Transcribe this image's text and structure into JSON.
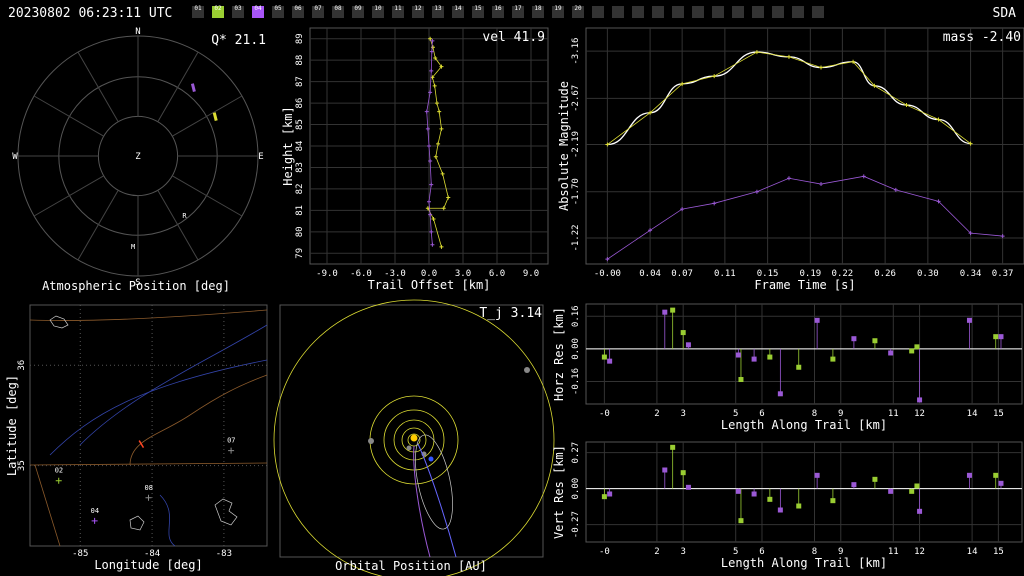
{
  "header": {
    "timestamp": "20230802 06:23:11 UTC",
    "station": "SDA",
    "cameras": [
      "01",
      "02",
      "03",
      "04",
      "05",
      "06",
      "07",
      "08",
      "09",
      "10",
      "11",
      "12",
      "13",
      "14",
      "15",
      "16",
      "17",
      "18",
      "19",
      "20"
    ],
    "camera_states": {
      "02": "#9acd32",
      "04": "#a855f7"
    },
    "active_labels": {
      "02": "02",
      "04": "04"
    }
  },
  "colors": {
    "yellow": "#dddd33",
    "purple": "#9b59d6",
    "green": "#9acd32",
    "blue": "#3355ff"
  },
  "chart_data": [
    {
      "type": "polar-scatter",
      "id": "atmospheric",
      "title": "Atmospheric Position [deg]",
      "annotation": "Q* 21.1",
      "directions": {
        "north": "N",
        "south": "S",
        "east": "E",
        "west": "W",
        "zenith": "Z"
      },
      "points": [
        {
          "label": "R",
          "az": 143,
          "zen": 58
        },
        {
          "label": "M",
          "az": 183,
          "zen": 70
        }
      ],
      "tracks": [
        {
          "camera": "04",
          "az": 39,
          "zen": 66
        },
        {
          "camera": "02",
          "az": 63,
          "zen": 65
        }
      ]
    },
    {
      "type": "line",
      "id": "trail_height",
      "xlabel": "Trail Offset [km]",
      "ylabel": "Height [km]",
      "annotation": "vel 41.9",
      "xlim": [
        -10.5,
        10.5
      ],
      "ylim": [
        78.5,
        89.5
      ],
      "xticks": [
        "-9.0",
        "-6.0",
        "-3.0",
        "0.0",
        "3.0",
        "6.0",
        "9.0"
      ],
      "yticks": [
        "79",
        "80",
        "81",
        "82",
        "83",
        "84",
        "85",
        "86",
        "87",
        "88",
        "89"
      ],
      "series": [
        {
          "camera": "02",
          "points": [
            [
              0.1,
              89.0
            ],
            [
              0.35,
              88.6
            ],
            [
              0.55,
              88.1
            ],
            [
              1.1,
              87.7
            ],
            [
              0.3,
              87.2
            ],
            [
              0.5,
              86.8
            ],
            [
              0.7,
              86.0
            ],
            [
              0.9,
              85.6
            ],
            [
              1.1,
              84.8
            ],
            [
              0.8,
              84.1
            ],
            [
              0.6,
              83.5
            ],
            [
              1.2,
              82.7
            ],
            [
              1.7,
              81.6
            ],
            [
              1.3,
              81.1
            ],
            [
              -0.1,
              81.1
            ],
            [
              0.4,
              80.6
            ],
            [
              1.1,
              79.3
            ]
          ]
        },
        {
          "camera": "04",
          "points": [
            [
              0.3,
              88.9
            ],
            [
              0.25,
              88.4
            ],
            [
              0.2,
              87.5
            ],
            [
              0.1,
              86.5
            ],
            [
              -0.2,
              85.6
            ],
            [
              -0.1,
              84.8
            ],
            [
              0.0,
              84.0
            ],
            [
              0.1,
              83.3
            ],
            [
              0.2,
              82.2
            ],
            [
              0.0,
              81.4
            ],
            [
              0.1,
              80.8
            ],
            [
              0.2,
              80.0
            ],
            [
              0.3,
              79.4
            ]
          ]
        }
      ]
    },
    {
      "type": "line",
      "id": "light_curve",
      "xlabel": "Frame Time [s]",
      "ylabel": "Absolute Magnitude",
      "annotation": "mass -2.40",
      "xlim": [
        -0.02,
        0.39
      ],
      "ylim": [
        -0.95,
        -3.4
      ],
      "yreversed": true,
      "xticks": [
        "-0.00",
        "0.04",
        "0.07",
        "0.11",
        "0.15",
        "0.19",
        "0.22",
        "0.26",
        "0.30",
        "0.34",
        "0.37"
      ],
      "yticks": [
        "-1.22",
        "-1.70",
        "-2.19",
        "-2.67",
        "-3.16"
      ],
      "series": [
        {
          "camera": "02",
          "points": [
            [
              0.0,
              -2.19
            ],
            [
              0.04,
              -2.52
            ],
            [
              0.07,
              -2.82
            ],
            [
              0.1,
              -2.9
            ],
            [
              0.14,
              -3.15
            ],
            [
              0.17,
              -3.1
            ],
            [
              0.2,
              -2.99
            ],
            [
              0.23,
              -3.05
            ],
            [
              0.25,
              -2.8
            ],
            [
              0.28,
              -2.6
            ],
            [
              0.31,
              -2.45
            ],
            [
              0.34,
              -2.2
            ]
          ],
          "smooth": true
        },
        {
          "camera": "04",
          "points": [
            [
              0.0,
              -1.0
            ],
            [
              0.04,
              -1.3
            ],
            [
              0.07,
              -1.52
            ],
            [
              0.1,
              -1.58
            ],
            [
              0.14,
              -1.7
            ],
            [
              0.17,
              -1.84
            ],
            [
              0.2,
              -1.78
            ],
            [
              0.24,
              -1.86
            ],
            [
              0.27,
              -1.72
            ],
            [
              0.31,
              -1.6
            ],
            [
              0.34,
              -1.27
            ],
            [
              0.37,
              -1.24
            ]
          ]
        }
      ]
    },
    {
      "type": "stem",
      "id": "horz_res",
      "xlabel": "Length Along Trail [km]",
      "ylabel": "Horz Res [km]",
      "xlim": [
        -0.8,
        15.8
      ],
      "ylim": [
        -0.27,
        0.22
      ],
      "xticks": [
        "-0",
        "2",
        "3",
        "5",
        "6",
        "8",
        "9",
        "11",
        "12",
        "14",
        "15"
      ],
      "xtick_positions": [
        -0.1,
        1.9,
        2.9,
        4.9,
        5.9,
        7.9,
        8.9,
        10.9,
        11.9,
        13.9,
        14.9
      ],
      "yticks": [
        "0.16",
        "0.00",
        "-0.16"
      ],
      "yticks_values": [
        0.16,
        0.0,
        -0.16
      ],
      "series": [
        {
          "camera": "02",
          "points": [
            [
              -0.1,
              -0.04
            ],
            [
              2.5,
              0.19
            ],
            [
              2.9,
              0.08
            ],
            [
              5.1,
              -0.15
            ],
            [
              6.2,
              -0.04
            ],
            [
              7.3,
              -0.09
            ],
            [
              8.6,
              -0.05
            ],
            [
              10.2,
              0.04
            ],
            [
              11.6,
              -0.01
            ],
            [
              11.8,
              0.01
            ],
            [
              14.8,
              0.06
            ]
          ]
        },
        {
          "camera": "04",
          "points": [
            [
              0.1,
              -0.06
            ],
            [
              2.2,
              0.18
            ],
            [
              3.1,
              0.02
            ],
            [
              5.0,
              -0.03
            ],
            [
              5.6,
              -0.05
            ],
            [
              6.6,
              -0.22
            ],
            [
              8.0,
              0.14
            ],
            [
              9.4,
              0.05
            ],
            [
              10.8,
              -0.02
            ],
            [
              11.9,
              -0.25
            ],
            [
              13.8,
              0.14
            ],
            [
              15.0,
              0.06
            ]
          ]
        }
      ]
    },
    {
      "type": "stem",
      "id": "vert_res",
      "xlabel": "Length Along Trail [km]",
      "ylabel": "Vert Res [km]",
      "xlim": [
        -0.8,
        15.8
      ],
      "ylim": [
        -0.4,
        0.35
      ],
      "xticks": [
        "-0",
        "2",
        "3",
        "5",
        "6",
        "8",
        "9",
        "11",
        "12",
        "14",
        "15"
      ],
      "xtick_positions": [
        -0.1,
        1.9,
        2.9,
        4.9,
        5.9,
        7.9,
        8.9,
        10.9,
        11.9,
        13.9,
        14.9
      ],
      "yticks": [
        "0.27",
        "0.00",
        "-0.27"
      ],
      "yticks_values": [
        0.27,
        0.0,
        -0.27
      ],
      "series": [
        {
          "camera": "02",
          "points": [
            [
              -0.1,
              -0.06
            ],
            [
              2.5,
              0.31
            ],
            [
              2.9,
              0.12
            ],
            [
              5.1,
              -0.24
            ],
            [
              6.2,
              -0.08
            ],
            [
              7.3,
              -0.13
            ],
            [
              8.6,
              -0.09
            ],
            [
              10.2,
              0.07
            ],
            [
              11.6,
              -0.02
            ],
            [
              11.8,
              0.02
            ],
            [
              14.8,
              0.1
            ]
          ]
        },
        {
          "camera": "04",
          "points": [
            [
              0.1,
              -0.04
            ],
            [
              2.2,
              0.14
            ],
            [
              3.1,
              0.01
            ],
            [
              5.0,
              -0.02
            ],
            [
              5.6,
              -0.04
            ],
            [
              6.6,
              -0.16
            ],
            [
              8.0,
              0.1
            ],
            [
              9.4,
              0.03
            ],
            [
              10.8,
              -0.02
            ],
            [
              11.9,
              -0.17
            ],
            [
              13.8,
              0.1
            ],
            [
              15.0,
              0.04
            ]
          ]
        }
      ]
    },
    {
      "type": "map",
      "id": "ground_map",
      "xlabel": "Longitude [deg]",
      "ylabel": "Latitude [deg]",
      "xlim": [
        -85.7,
        -82.4
      ],
      "ylim": [
        34.2,
        36.6
      ],
      "xticks": [
        "-85",
        "-84",
        "-83"
      ],
      "xtick_values": [
        -85,
        -84,
        -83
      ],
      "yticks": [
        "35",
        "36"
      ],
      "ytick_values": [
        35,
        36
      ],
      "stations": [
        {
          "label": "02",
          "lon": -85.3,
          "lat": 34.85,
          "color": "#9acd32"
        },
        {
          "label": "04",
          "lon": -84.8,
          "lat": 34.45,
          "color": "#a855f7"
        },
        {
          "label": "07",
          "lon": -82.9,
          "lat": 35.15,
          "color": "#888888"
        },
        {
          "label": "08",
          "lon": -84.05,
          "lat": 34.68,
          "color": "#888888"
        }
      ],
      "trail": [
        [
          -84.18,
          35.25
        ],
        [
          -84.12,
          35.18
        ]
      ]
    },
    {
      "type": "orbit",
      "id": "orbital",
      "xlabel": "Orbital Position [AU]",
      "annotation": "T_j 3.14"
    }
  ]
}
